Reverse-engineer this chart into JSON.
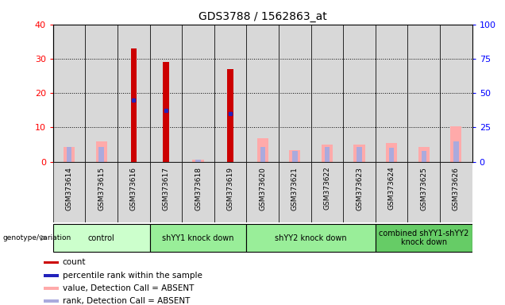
{
  "title": "GDS3788 / 1562863_at",
  "samples": [
    "GSM373614",
    "GSM373615",
    "GSM373616",
    "GSM373617",
    "GSM373618",
    "GSM373619",
    "GSM373620",
    "GSM373621",
    "GSM373622",
    "GSM373623",
    "GSM373624",
    "GSM373625",
    "GSM373626"
  ],
  "count_values": [
    0,
    0,
    33,
    29,
    0,
    27,
    0,
    0,
    0,
    0,
    0,
    0,
    0
  ],
  "percentile_rank_values": [
    0,
    0,
    18,
    15,
    0,
    14,
    0,
    0,
    0,
    0,
    0,
    0,
    0
  ],
  "absent_value_values": [
    11,
    14.5,
    0,
    0,
    1.5,
    0,
    17,
    8.5,
    12.5,
    12.5,
    13.5,
    10.5,
    26
  ],
  "absent_rank_values": [
    10.5,
    11,
    0,
    0,
    1.5,
    0,
    11,
    8,
    11,
    11,
    10,
    8,
    15
  ],
  "ylim_left": [
    0,
    40
  ],
  "ylim_right": [
    0,
    100
  ],
  "yticks_left": [
    0,
    10,
    20,
    30,
    40
  ],
  "yticks_right": [
    0,
    25,
    50,
    75,
    100
  ],
  "groups": [
    {
      "label": "control",
      "start": 0,
      "end": 2,
      "color": "#ccffcc"
    },
    {
      "label": "shYY1 knock down",
      "start": 3,
      "end": 5,
      "color": "#99ee99"
    },
    {
      "label": "shYY2 knock down",
      "start": 6,
      "end": 9,
      "color": "#99ee99"
    },
    {
      "label": "combined shYY1-shYY2\nknock down",
      "start": 10,
      "end": 12,
      "color": "#66cc66"
    }
  ],
  "count_color": "#cc0000",
  "percentile_color": "#2222bb",
  "absent_value_color": "#ffaaaa",
  "absent_rank_color": "#aaaadd",
  "bg_color": "#ffffff",
  "col_bg_color": "#d8d8d8",
  "legend_items": [
    {
      "color": "#cc0000",
      "label": "count"
    },
    {
      "color": "#2222bb",
      "label": "percentile rank within the sample"
    },
    {
      "color": "#ffaaaa",
      "label": "value, Detection Call = ABSENT"
    },
    {
      "color": "#aaaadd",
      "label": "rank, Detection Call = ABSENT"
    }
  ]
}
